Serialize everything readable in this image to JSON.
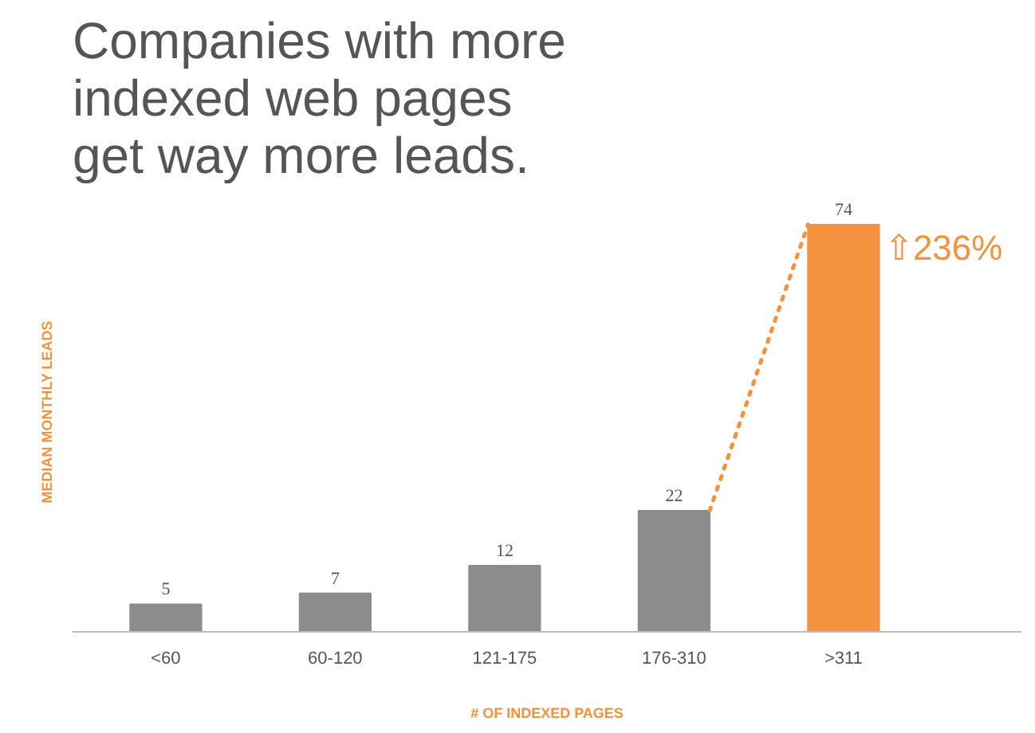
{
  "chart_data": {
    "type": "bar",
    "title": "Companies with more\nindexed web pages\nget way more leads.",
    "categories": [
      "<60",
      "60-120",
      "121-175",
      "176-310",
      ">311"
    ],
    "values": [
      5,
      7,
      12,
      22,
      74
    ],
    "colors": [
      "#8c8c8c",
      "#8c8c8c",
      "#8c8c8c",
      "#8c8c8c",
      "#f5923e"
    ],
    "data_labels": true,
    "xlabel": "# OF INDEXED PAGES",
    "ylabel": "MEDIAN MONTHLY LEADS",
    "annotations": [
      {
        "text": "⇧236%",
        "x": ">311",
        "y": 74
      }
    ],
    "grid": false
  }
}
